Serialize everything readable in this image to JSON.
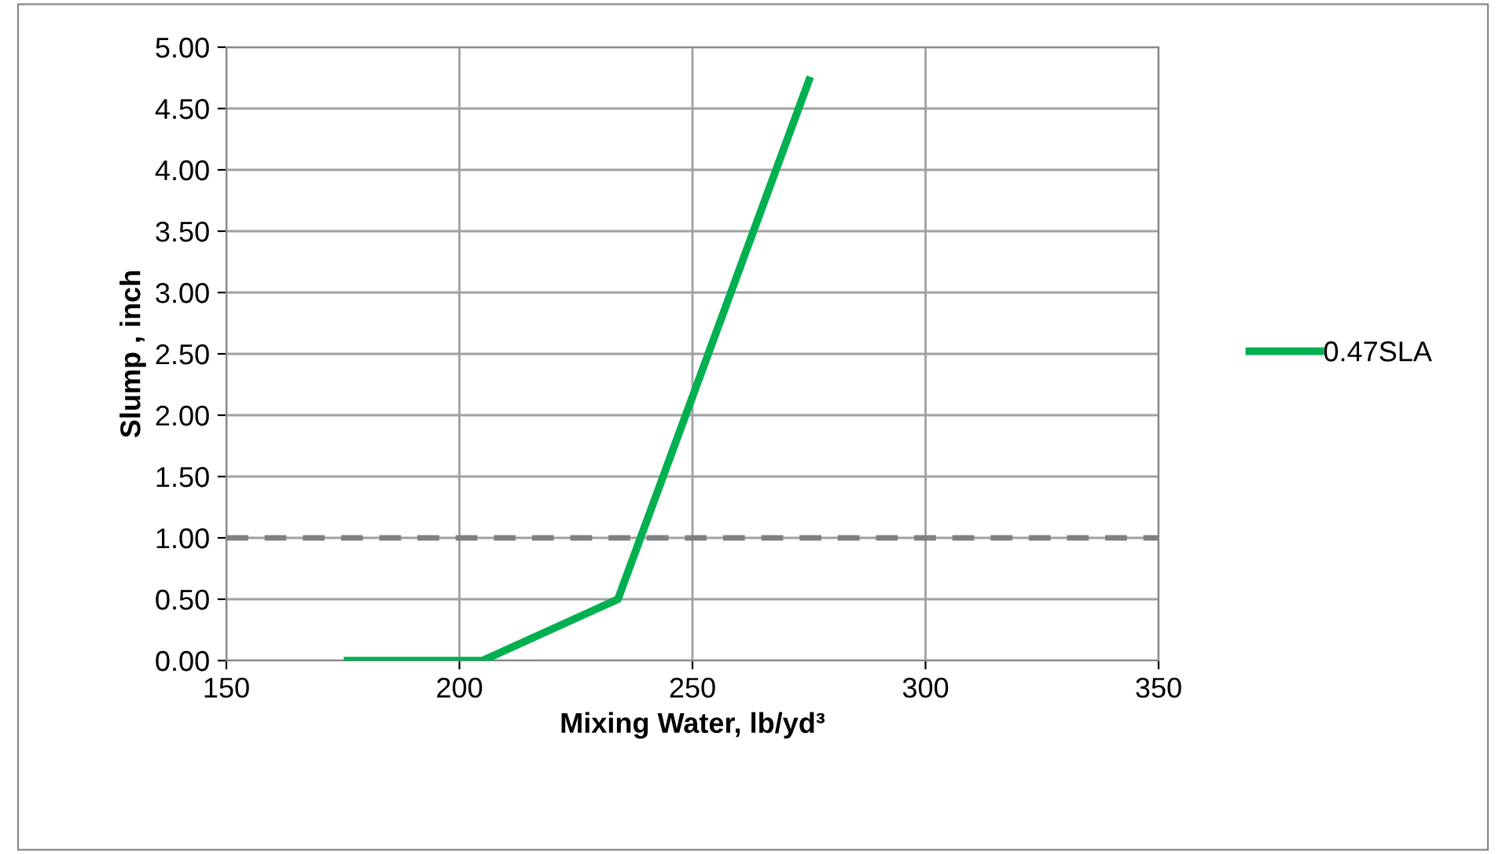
{
  "chart_data": {
    "type": "line",
    "xlabel": "Mixing Water, lb/yd³",
    "ylabel": "Slump , inch",
    "series": [
      {
        "name": "0.47SLA",
        "color": "#00b050",
        "x": [
          176,
          205,
          234,
          275
        ],
        "values": [
          0,
          0,
          0.5,
          4.73
        ]
      }
    ],
    "xlim": [
      150,
      350
    ],
    "xticks": [
      150,
      200,
      250,
      300,
      350
    ],
    "ylim": [
      0,
      5
    ],
    "yticks": [
      {
        "value": 0,
        "label": "0.00"
      },
      {
        "value": 0.5,
        "label": "0.50"
      },
      {
        "value": 1,
        "label": "1.00"
      },
      {
        "value": 1.5,
        "label": "1.50"
      },
      {
        "value": 2,
        "label": "2.00"
      },
      {
        "value": 2.5,
        "label": "2.50"
      },
      {
        "value": 3,
        "label": "3.00"
      },
      {
        "value": 3.5,
        "label": "3.50"
      },
      {
        "value": 4,
        "label": "4.00"
      },
      {
        "value": 4.5,
        "label": "4.50"
      },
      {
        "value": 5,
        "label": "5.00"
      }
    ],
    "ref_lines": [
      {
        "axis": "y",
        "value": 1,
        "color": "#808080",
        "line_style": "dashed"
      }
    ],
    "grid": true,
    "legend": "right",
    "line_style": "solid"
  }
}
